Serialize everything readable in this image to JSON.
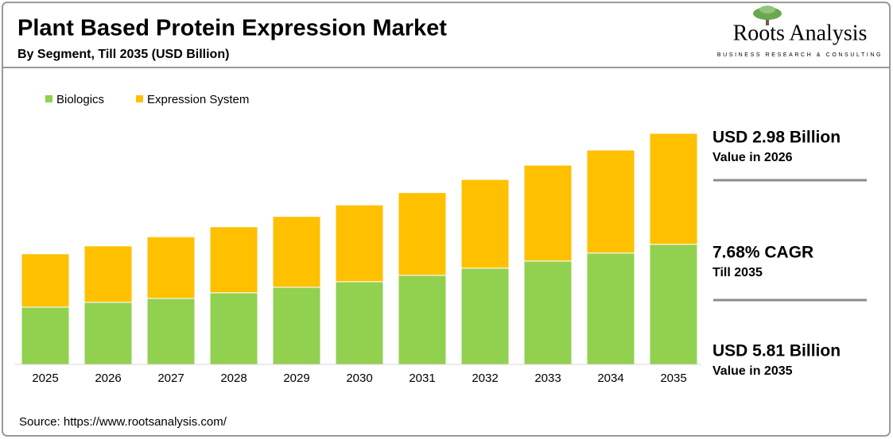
{
  "chart_data": {
    "type": "stacked-bar",
    "title": "Plant Based Protein Expression Market",
    "subtitle": "By Segment, Till 2035 (USD Billion)",
    "categories": [
      "2025",
      "2026",
      "2027",
      "2028",
      "2029",
      "2030",
      "2031",
      "2032",
      "2033",
      "2034",
      "2035"
    ],
    "series": [
      {
        "name": "Biologics",
        "color": "#92d050",
        "values": [
          1.44,
          1.56,
          1.66,
          1.8,
          1.94,
          2.08,
          2.24,
          2.42,
          2.6,
          2.8,
          3.02
        ]
      },
      {
        "name": "Expression System",
        "color": "#ffc000",
        "values": [
          1.34,
          1.42,
          1.55,
          1.66,
          1.78,
          1.93,
          2.08,
          2.23,
          2.41,
          2.59,
          2.79
        ]
      }
    ],
    "annotations": [
      {
        "headline": "USD 2.98 Billion",
        "detail": "Value in 2026"
      },
      {
        "headline": "7.68% CAGR",
        "detail": "Till 2035"
      },
      {
        "headline": "USD 5.81 Billion",
        "detail": "Value in 2035"
      }
    ],
    "source": "Source: https://www.rootsanalysis.com/",
    "logo": {
      "name": "Roots Analysis",
      "tagline": "BUSINESS RESEARCH & CONSULTING"
    }
  }
}
